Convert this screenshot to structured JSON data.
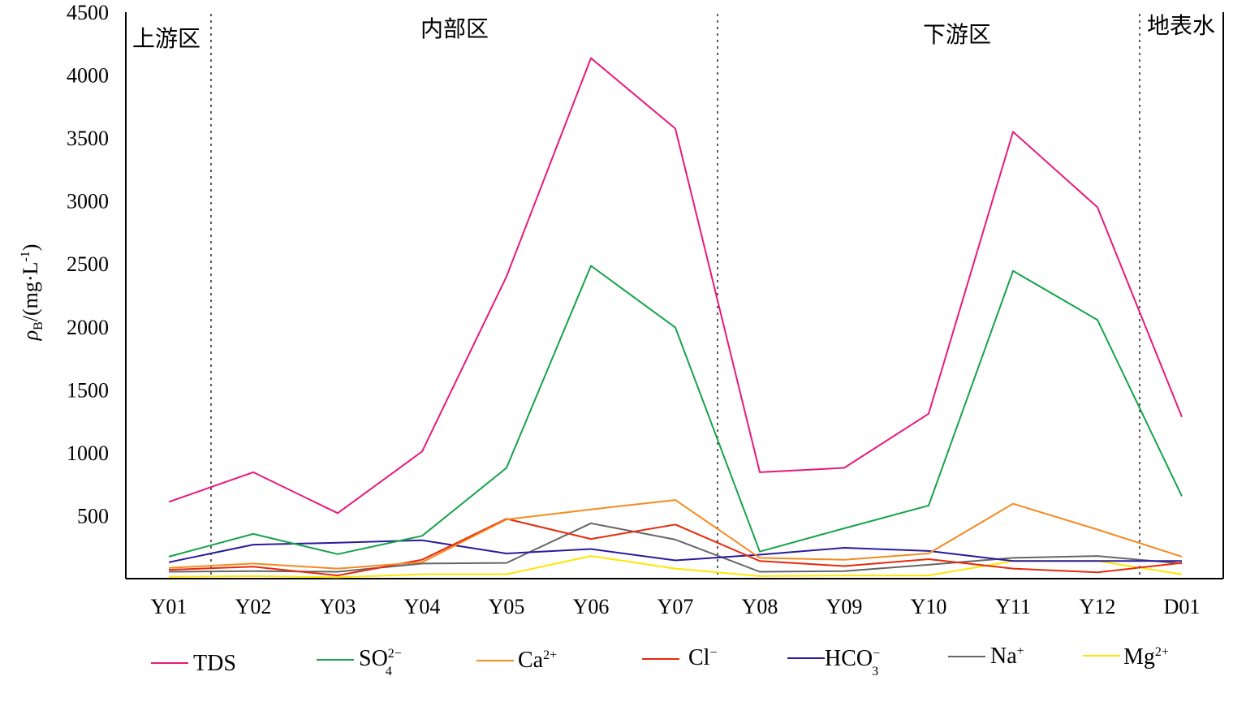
{
  "chart_data": {
    "type": "line",
    "ylabel": "ρB/(mg·L-1)",
    "ylim": [
      0,
      4500
    ],
    "y_ticks": [
      500,
      1000,
      1500,
      2000,
      2500,
      3000,
      3500,
      4000,
      4500
    ],
    "categories": [
      "Y01",
      "Y02",
      "Y03",
      "Y04",
      "Y05",
      "Y06",
      "Y07",
      "Y08",
      "Y09",
      "Y10",
      "Y11",
      "Y12",
      "D01"
    ],
    "zones": [
      "上游区",
      "内部区",
      "下游区",
      "地表水"
    ],
    "zone_dividers_after": [
      "Y01",
      "Y07",
      "Y12"
    ],
    "legend_position": "bottom",
    "grid": false,
    "series": [
      {
        "name": "TDS",
        "color": "#e8197d",
        "values": [
          610,
          845,
          520,
          1010,
          2400,
          4135,
          3575,
          845,
          880,
          1310,
          3550,
          2950,
          1285
        ]
      },
      {
        "name": "SO42−",
        "color": "#16a34a",
        "values": [
          175,
          355,
          195,
          340,
          880,
          2485,
          1995,
          215,
          400,
          580,
          2445,
          2055,
          655
        ]
      },
      {
        "name": "Ca2+",
        "color": "#f58a1f",
        "values": [
          85,
          120,
          80,
          130,
          470,
          550,
          625,
          165,
          150,
          200,
          595,
          390,
          175
        ]
      },
      {
        "name": "Cl−",
        "color": "#e8290b",
        "values": [
          70,
          95,
          25,
          150,
          475,
          315,
          430,
          140,
          100,
          155,
          80,
          50,
          125
        ]
      },
      {
        "name": "HCO3−",
        "color": "#2a1b9c",
        "values": [
          130,
          270,
          285,
          305,
          200,
          235,
          145,
          190,
          245,
          220,
          140,
          140,
          140
        ]
      },
      {
        "name": "Na+",
        "color": "#666666",
        "values": [
          55,
          60,
          55,
          120,
          125,
          440,
          310,
          55,
          60,
          110,
          165,
          180,
          120
        ]
      },
      {
        "name": "Mg2+",
        "color": "#ffe600",
        "values": [
          15,
          20,
          10,
          35,
          35,
          180,
          80,
          20,
          25,
          25,
          140,
          140,
          35
        ]
      }
    ]
  }
}
